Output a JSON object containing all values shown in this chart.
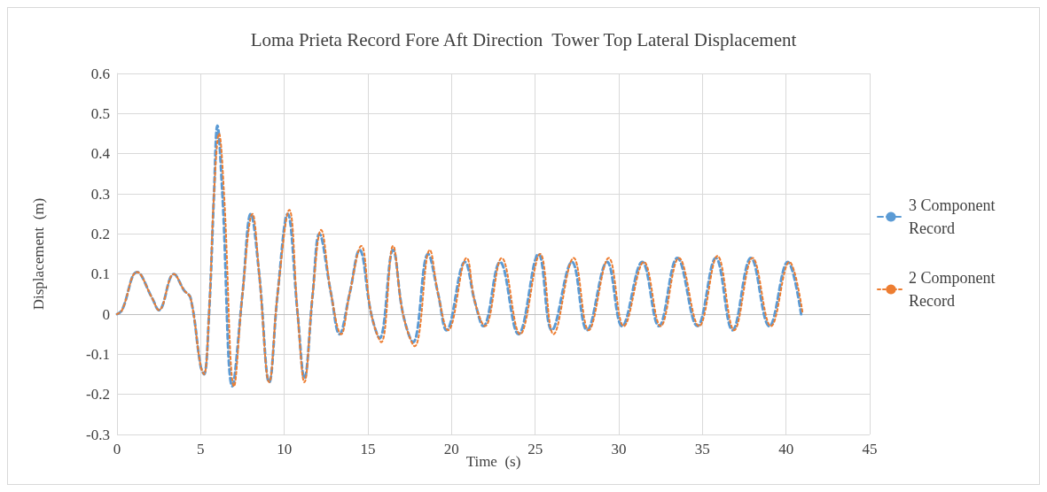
{
  "chart_data": {
    "type": "line",
    "title": "Loma Prieta Record Fore Aft Direction  Tower Top Lateral Displacement",
    "xlabel": "Time  (s)",
    "ylabel": "Displacement  (m)",
    "xlim": [
      0,
      45
    ],
    "xticks": [
      0,
      5,
      10,
      15,
      20,
      25,
      30,
      35,
      40,
      45
    ],
    "ylim": [
      -0.3,
      0.6
    ],
    "yticks": [
      -0.3,
      -0.2,
      -0.1,
      0,
      0.1,
      0.2,
      0.3,
      0.4,
      0.5,
      0.6
    ],
    "grid": true,
    "legend": "right",
    "marker": "none",
    "series": [
      {
        "name": "3 Component Record",
        "color": "#5b9bd5",
        "line_style": "dashed",
        "x": [
          0,
          0.3,
          1.2,
          2.1,
          2.5,
          3.4,
          4.0,
          4.4,
          5.0,
          5.2,
          5.5,
          5.8,
          6.0,
          6.3,
          6.9,
          7.5,
          8.0,
          8.5,
          9.1,
          9.6,
          10.2,
          10.8,
          11.2,
          11.7,
          12.1,
          12.8,
          13.3,
          13.9,
          14.5,
          15.2,
          15.7,
          16.5,
          17.1,
          17.7,
          18.6,
          19.2,
          19.7,
          20.8,
          21.4,
          21.9,
          22.9,
          24.0,
          25.2,
          26.0,
          27.2,
          28.1,
          29.3,
          30.2,
          31.4,
          32.4,
          33.5,
          34.7,
          35.8,
          36.8,
          37.9,
          39.0,
          40.1,
          40.9
        ],
        "values": [
          0,
          0.01,
          0.105,
          0.04,
          0.01,
          0.1,
          0.06,
          0.04,
          -0.13,
          -0.15,
          0.0,
          0.3,
          0.47,
          0.3,
          -0.18,
          0.05,
          0.25,
          0.1,
          -0.17,
          0.05,
          0.25,
          0.0,
          -0.16,
          0.05,
          0.2,
          0.05,
          -0.05,
          0.05,
          0.16,
          0.0,
          -0.06,
          0.16,
          0.0,
          -0.07,
          0.15,
          0.05,
          -0.04,
          0.13,
          0.03,
          -0.03,
          0.13,
          -0.05,
          0.15,
          -0.04,
          0.13,
          -0.04,
          0.13,
          -0.03,
          0.13,
          -0.03,
          0.14,
          -0.03,
          0.14,
          -0.04,
          0.14,
          -0.03,
          0.13,
          0
        ]
      },
      {
        "name": "2 Component Record",
        "color": "#ed7d31",
        "line_style": "dotted",
        "x": [
          0,
          0.3,
          1.2,
          2.1,
          2.5,
          3.4,
          4.0,
          4.4,
          5.0,
          5.2,
          5.5,
          5.8,
          6.1,
          6.4,
          7.0,
          7.5,
          8.1,
          8.5,
          9.1,
          9.6,
          10.3,
          10.8,
          11.2,
          11.7,
          12.2,
          12.8,
          13.4,
          13.9,
          14.6,
          15.2,
          15.8,
          16.5,
          17.1,
          17.8,
          18.7,
          19.2,
          19.8,
          20.9,
          21.4,
          22.0,
          23.0,
          24.1,
          25.3,
          26.1,
          27.3,
          28.2,
          29.4,
          30.3,
          31.5,
          32.5,
          33.6,
          34.8,
          35.9,
          36.9,
          38.0,
          39.1,
          40.2,
          41.0
        ],
        "values": [
          0,
          0.01,
          0.105,
          0.04,
          0.01,
          0.1,
          0.06,
          0.04,
          -0.13,
          -0.15,
          0.0,
          0.3,
          0.45,
          0.3,
          -0.18,
          0.05,
          0.25,
          0.1,
          -0.17,
          0.05,
          0.26,
          0.0,
          -0.17,
          0.05,
          0.21,
          0.05,
          -0.05,
          0.05,
          0.17,
          0.0,
          -0.07,
          0.17,
          0.0,
          -0.08,
          0.16,
          0.05,
          -0.04,
          0.14,
          0.03,
          -0.03,
          0.14,
          -0.05,
          0.15,
          -0.05,
          0.14,
          -0.04,
          0.14,
          -0.03,
          0.13,
          -0.03,
          0.14,
          -0.03,
          0.145,
          -0.04,
          0.14,
          -0.03,
          0.13,
          0
        ]
      }
    ]
  }
}
